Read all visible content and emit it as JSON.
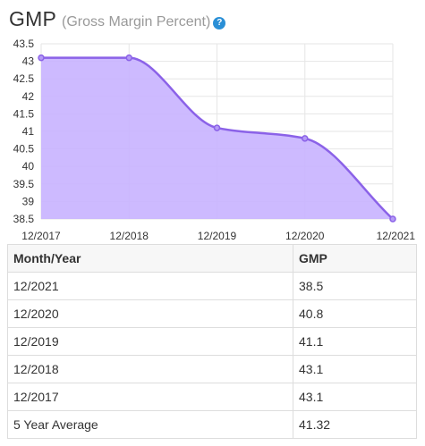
{
  "header": {
    "title": "GMP",
    "subtitle": "(Gross Margin Percent)",
    "help_icon": "question-circle-icon",
    "help_glyph": "?"
  },
  "colors": {
    "line": "#8b62e8",
    "fill": "#c8b2ff",
    "grid": "#e6e6e6",
    "help": "#2a8fd6"
  },
  "chart_data": {
    "type": "area",
    "x": [
      "12/2017",
      "12/2018",
      "12/2019",
      "12/2020",
      "12/2021"
    ],
    "values": [
      43.1,
      43.1,
      41.1,
      40.8,
      38.5
    ],
    "ylim": [
      38.5,
      43.5
    ],
    "yticks": [
      "43.5",
      "43",
      "42.5",
      "42",
      "41.5",
      "41",
      "40.5",
      "40",
      "39.5",
      "39",
      "38.5"
    ],
    "grid": true,
    "smooth": true,
    "markers": true
  },
  "table": {
    "headers": [
      "Month/Year",
      "GMP"
    ],
    "rows": [
      [
        "12/2021",
        "38.5"
      ],
      [
        "12/2020",
        "40.8"
      ],
      [
        "12/2019",
        "41.1"
      ],
      [
        "12/2018",
        "43.1"
      ],
      [
        "12/2017",
        "43.1"
      ],
      [
        "5 Year Average",
        "41.32"
      ]
    ]
  }
}
